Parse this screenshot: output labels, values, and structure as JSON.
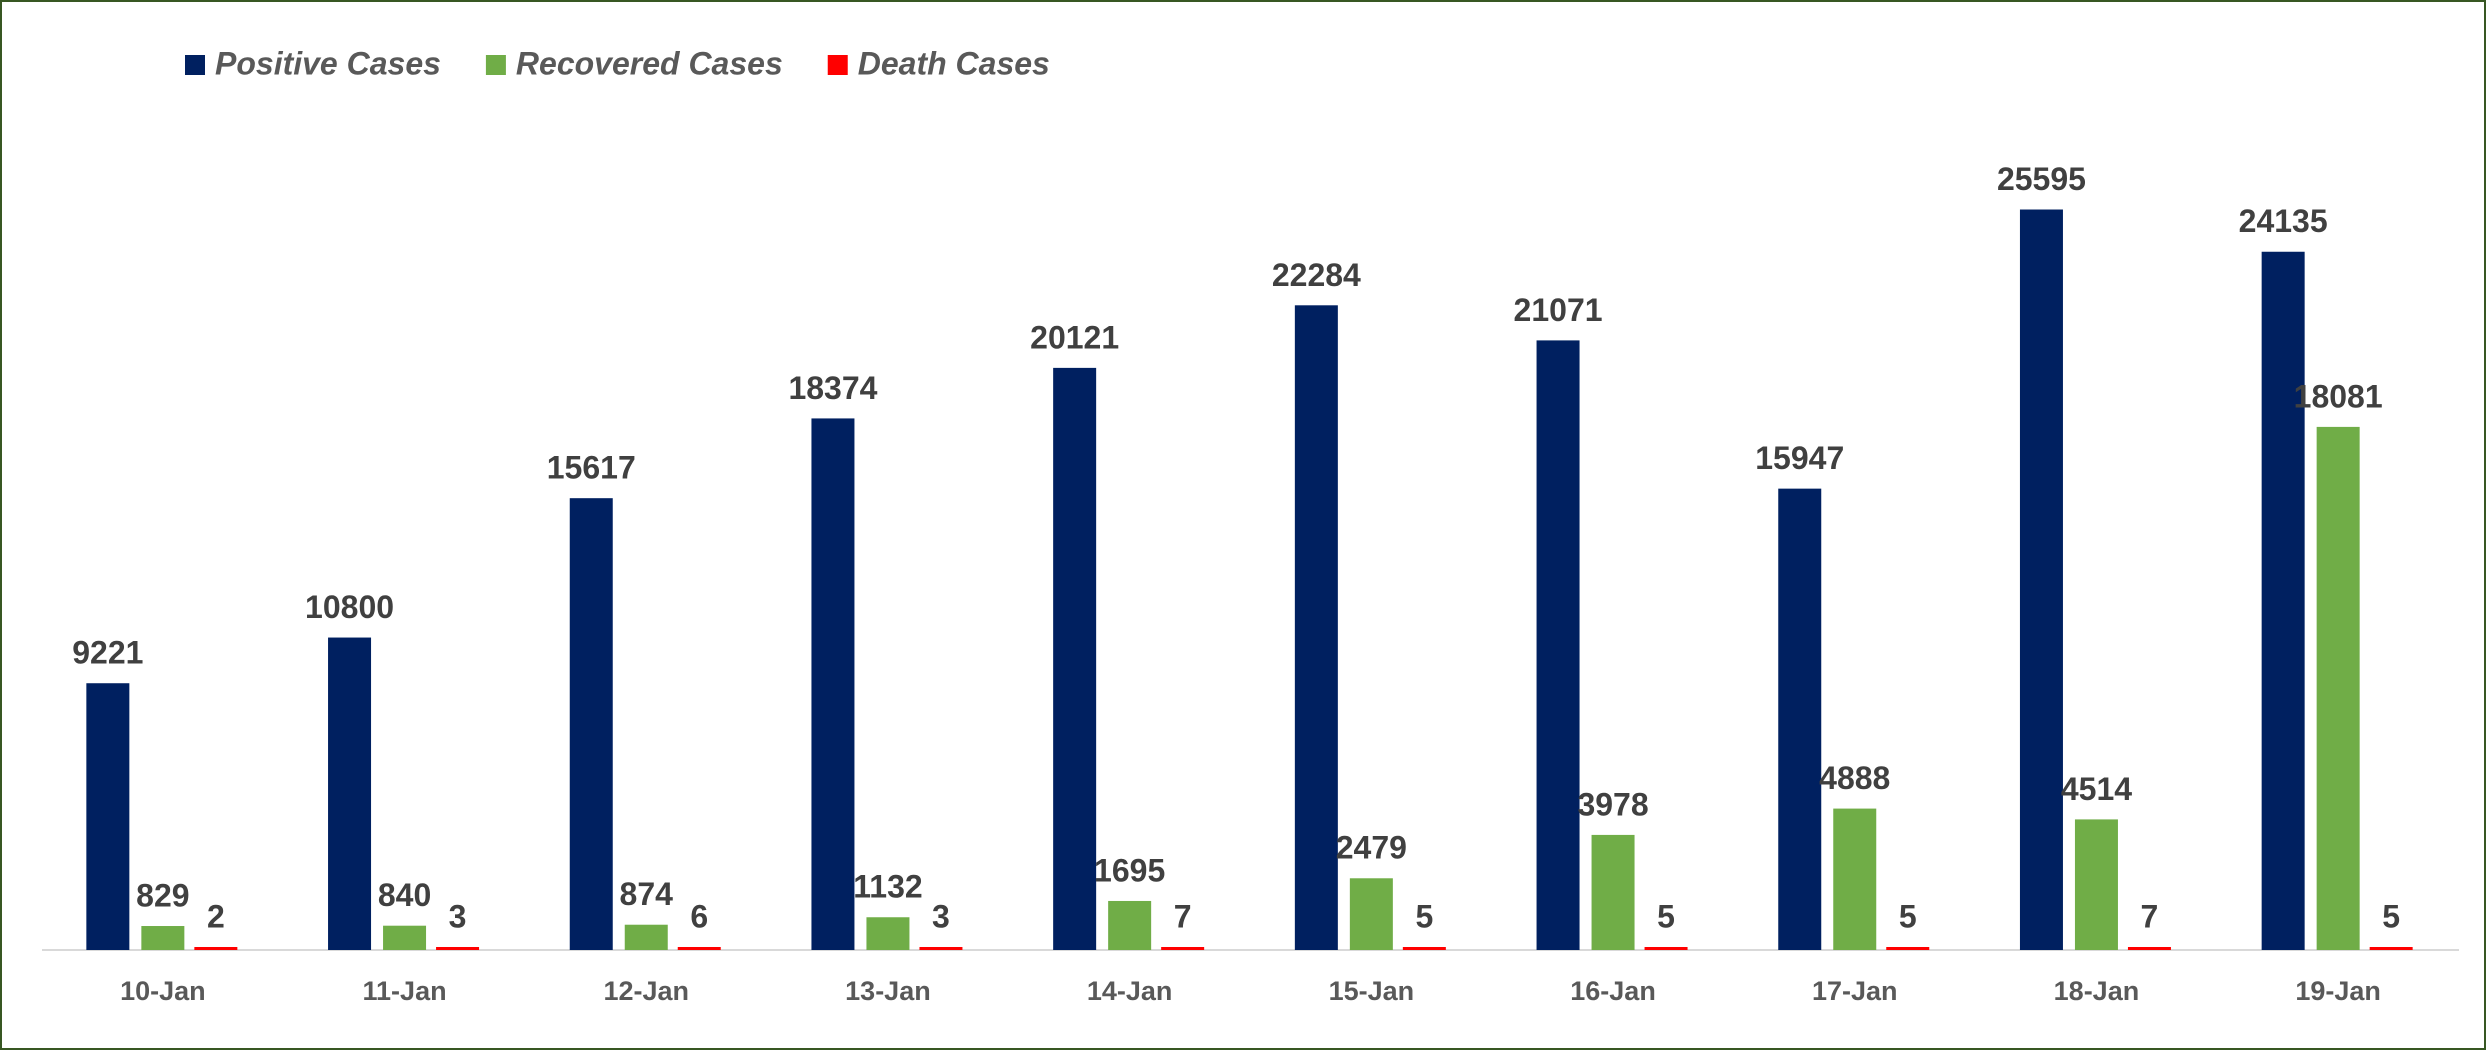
{
  "chart_data": {
    "type": "bar",
    "categories": [
      "10-Jan",
      "11-Jan",
      "12-Jan",
      "13-Jan",
      "14-Jan",
      "15-Jan",
      "16-Jan",
      "17-Jan",
      "18-Jan",
      "19-Jan"
    ],
    "series": [
      {
        "name": "Positive Cases",
        "color": "#002060",
        "values": [
          9221,
          10800,
          15617,
          18374,
          20121,
          22284,
          21071,
          15947,
          25595,
          24135
        ]
      },
      {
        "name": "Recovered Cases",
        "color": "#70ad47",
        "values": [
          829,
          840,
          874,
          1132,
          1695,
          2479,
          3978,
          4888,
          4514,
          18081
        ]
      },
      {
        "name": "Death Cases",
        "color": "#ff0000",
        "values": [
          2,
          3,
          6,
          3,
          7,
          5,
          5,
          5,
          7,
          5
        ]
      }
    ],
    "ylim": [
      0,
      29000
    ],
    "legend": "top-left"
  }
}
